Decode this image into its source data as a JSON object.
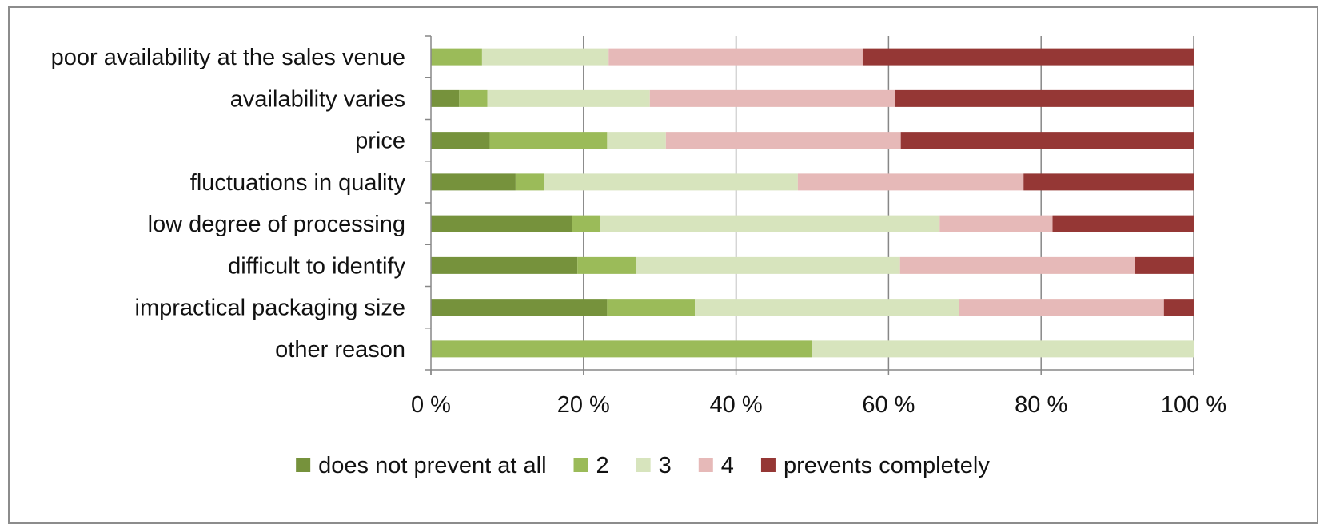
{
  "chart_data": {
    "type": "bar",
    "orientation": "horizontal",
    "stacked": "percent",
    "categories": [
      "poor availability at the sales venue",
      "availability varies",
      "price",
      "fluctuations in quality",
      "low degree of processing",
      "difficult to identify",
      "impractical packaging size",
      "other reason"
    ],
    "series": [
      {
        "name": "does not prevent at all",
        "color": "#76923c",
        "values": [
          0,
          3.7,
          7.7,
          11.1,
          18.5,
          19.2,
          23.1,
          0
        ]
      },
      {
        "name": "2",
        "color": "#9bbb59",
        "values": [
          6.7,
          3.7,
          15.4,
          3.7,
          3.7,
          7.7,
          11.5,
          50
        ]
      },
      {
        "name": "3",
        "color": "#d7e4bd",
        "values": [
          16.6,
          21.3,
          7.7,
          33.3,
          44.5,
          34.6,
          34.6,
          50
        ]
      },
      {
        "name": "4",
        "color": "#e6b9b8",
        "values": [
          33.3,
          32.1,
          30.8,
          29.6,
          14.8,
          30.8,
          26.9,
          0
        ]
      },
      {
        "name": "prevents completely",
        "color": "#953735",
        "values": [
          43.4,
          39.2,
          38.4,
          22.3,
          18.5,
          7.7,
          3.9,
          0
        ]
      }
    ],
    "xlim": [
      0,
      100
    ],
    "xticks": [
      "0 %",
      "20 %",
      "40 %",
      "60 %",
      "80 %",
      "100 %"
    ],
    "grid": "vertical major gridlines",
    "legend_position": "bottom",
    "title": "",
    "xlabel": "",
    "ylabel": ""
  }
}
